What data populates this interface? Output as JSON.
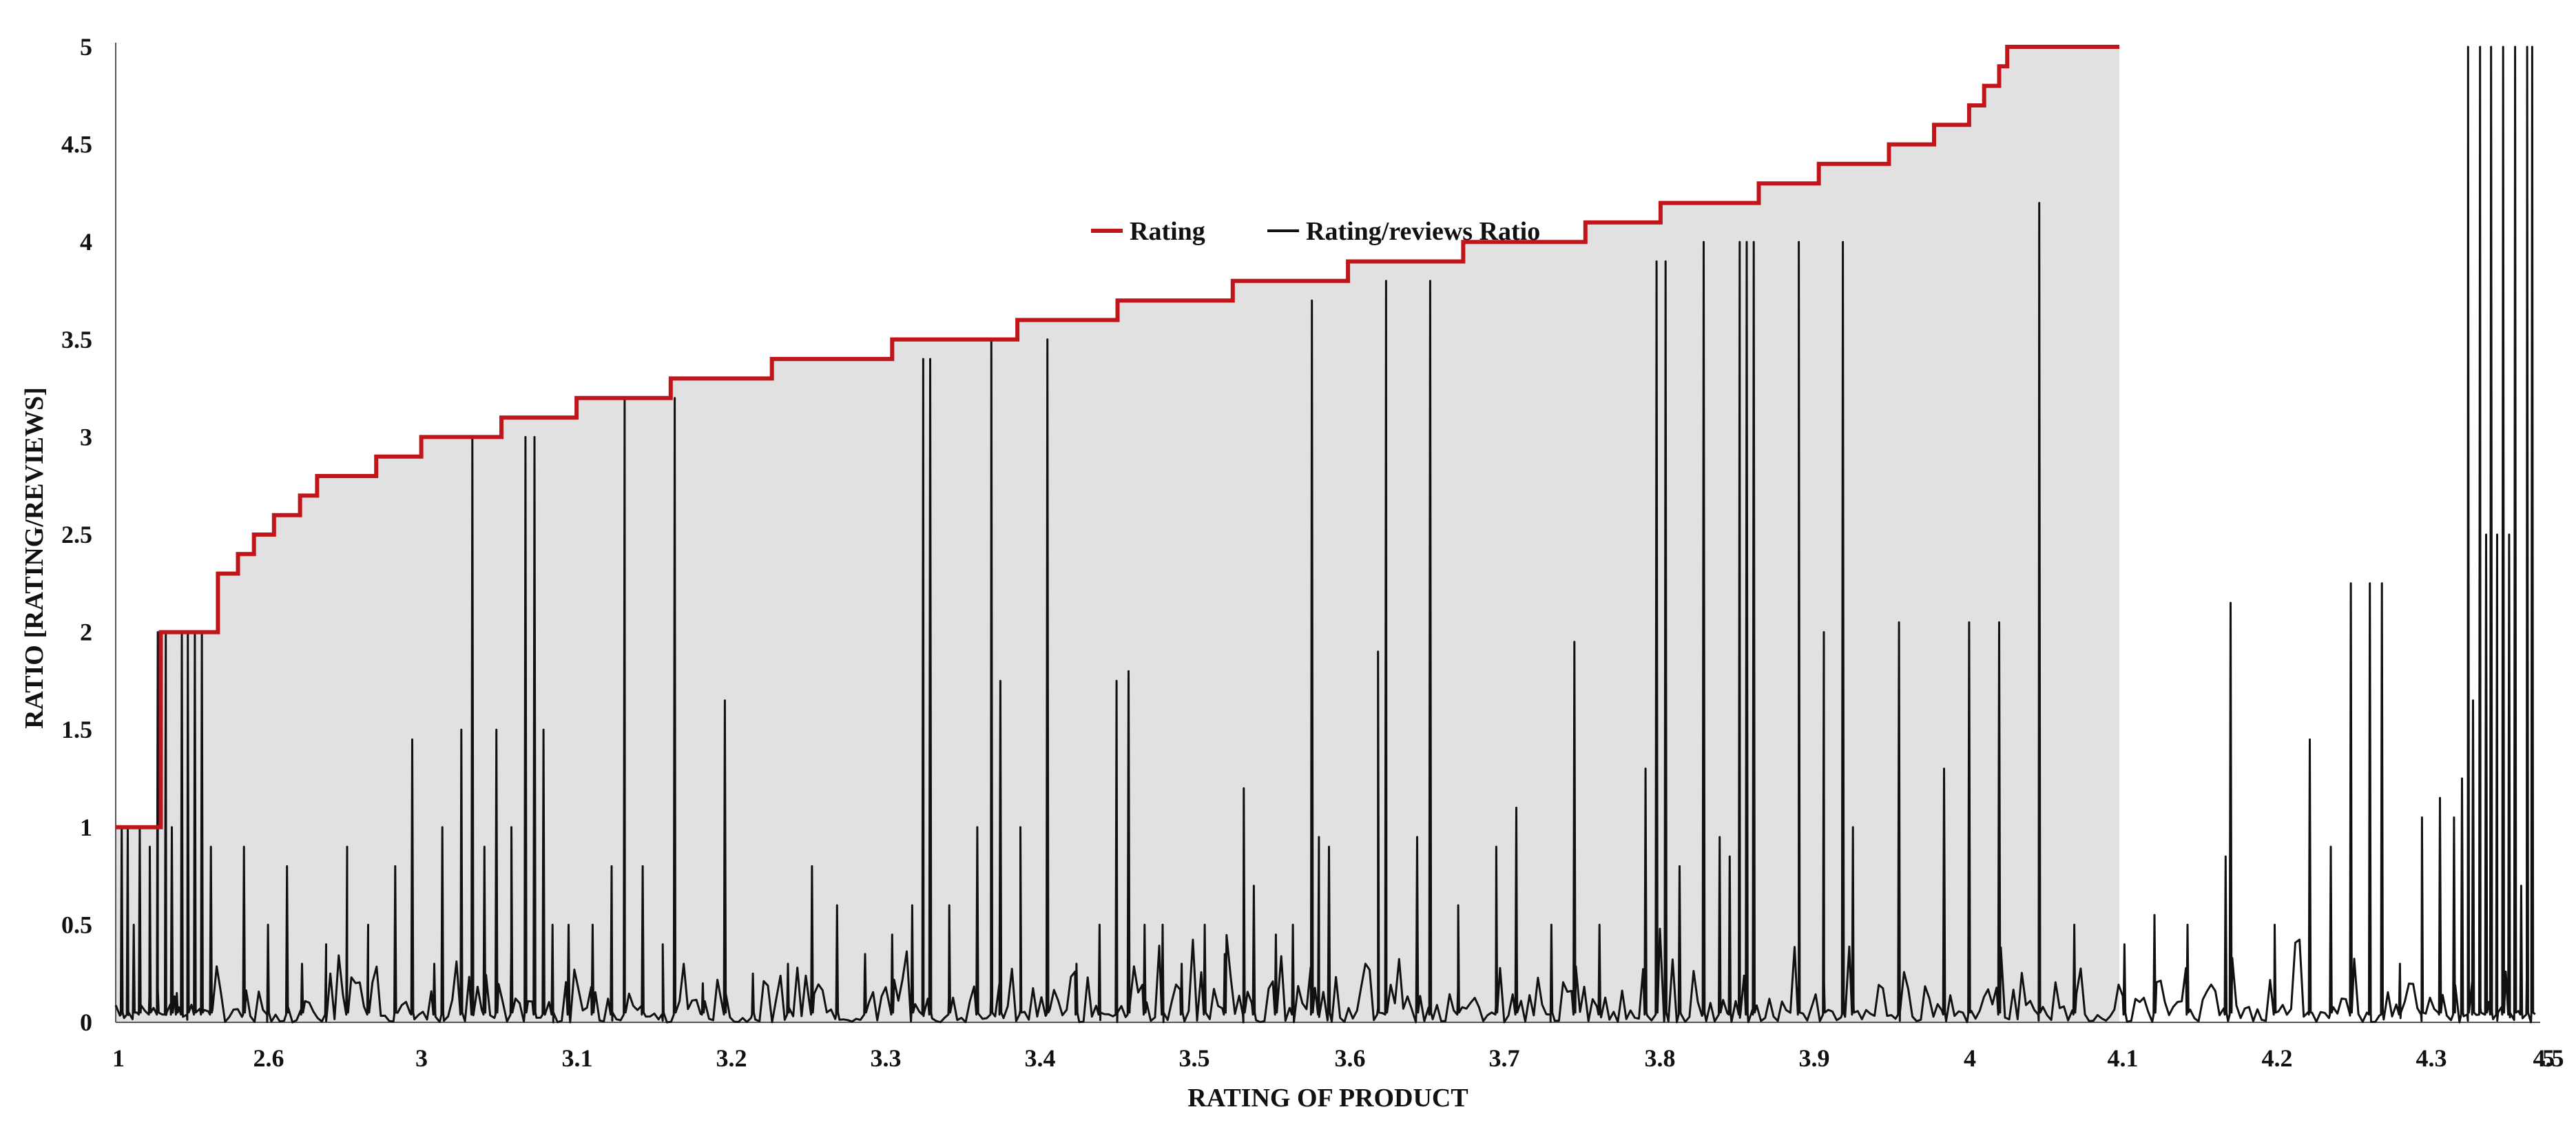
{
  "chart_data": {
    "type": "line",
    "xlabel": "RATING  OF PRODUCT",
    "ylabel": "RATIO  [RATING/REVIEWS]",
    "ylim": [
      0,
      5
    ],
    "y_ticks": [
      "0",
      "0.5",
      "1",
      "1.5",
      "2",
      "2.5",
      "3",
      "3.5",
      "4",
      "4.5",
      "5"
    ],
    "x_ticks": [
      "1",
      "2.6",
      "3",
      "3.1",
      "3.2",
      "3.3",
      "3.4",
      "3.5",
      "3.6",
      "3.7",
      "3.8",
      "3.9",
      "4",
      "4.1",
      "4.2",
      "4.3",
      "4.5",
      "5"
    ],
    "grid": false,
    "legend": {
      "position": "top-center",
      "entries": [
        "Rating",
        "Rating/reviews Ratio"
      ]
    },
    "colors": {
      "rating": "#c0151b",
      "ratio": "#111111",
      "fill": "#dcdcdc"
    },
    "series": [
      {
        "name": "Rating",
        "steps": [
          [
            0.0,
            1.0
          ],
          [
            0.045,
            2.0
          ],
          [
            0.102,
            2.3
          ],
          [
            0.122,
            2.4
          ],
          [
            0.138,
            2.5
          ],
          [
            0.158,
            2.6
          ],
          [
            0.184,
            2.7
          ],
          [
            0.201,
            2.8
          ],
          [
            0.26,
            2.9
          ],
          [
            0.305,
            3.0
          ],
          [
            0.385,
            3.1
          ],
          [
            0.46,
            3.2
          ],
          [
            0.554,
            3.3
          ],
          [
            0.655,
            3.4
          ],
          [
            0.775,
            3.5
          ],
          [
            0.9,
            3.6
          ],
          [
            1.0,
            3.7
          ],
          [
            1.115,
            3.8
          ],
          [
            1.23,
            3.9
          ],
          [
            1.345,
            4.0
          ],
          [
            1.467,
            4.1
          ],
          [
            1.542,
            4.2
          ],
          [
            1.64,
            4.3
          ],
          [
            1.7,
            4.4
          ],
          [
            1.77,
            4.5
          ],
          [
            1.815,
            4.6
          ],
          [
            1.85,
            4.7
          ],
          [
            1.865,
            4.8
          ],
          [
            1.88,
            4.9
          ],
          [
            1.888,
            5.0
          ],
          [
            2.0,
            5.0
          ]
        ]
      },
      {
        "name": "Rating/reviews Ratio",
        "peaks": [
          [
            0.006,
            1.0
          ],
          [
            0.012,
            1.0
          ],
          [
            0.018,
            0.5
          ],
          [
            0.024,
            1.0
          ],
          [
            0.034,
            0.9
          ],
          [
            0.042,
            2.0
          ],
          [
            0.05,
            2.0
          ],
          [
            0.056,
            1.0
          ],
          [
            0.061,
            0.15
          ],
          [
            0.066,
            2.0
          ],
          [
            0.072,
            2.0
          ],
          [
            0.079,
            2.0
          ],
          [
            0.086,
            2.0
          ],
          [
            0.095,
            0.9
          ],
          [
            0.128,
            0.9
          ],
          [
            0.152,
            0.5
          ],
          [
            0.171,
            0.8
          ],
          [
            0.186,
            0.3
          ],
          [
            0.21,
            0.4
          ],
          [
            0.231,
            0.9
          ],
          [
            0.252,
            0.5
          ],
          [
            0.279,
            0.8
          ],
          [
            0.296,
            1.45
          ],
          [
            0.318,
            0.3
          ],
          [
            0.326,
            1.0
          ],
          [
            0.345,
            1.5
          ],
          [
            0.356,
            3.0
          ],
          [
            0.368,
            0.9
          ],
          [
            0.38,
            1.5
          ],
          [
            0.395,
            1.0
          ],
          [
            0.409,
            3.0
          ],
          [
            0.418,
            3.0
          ],
          [
            0.427,
            1.5
          ],
          [
            0.436,
            0.5
          ],
          [
            0.452,
            0.5
          ],
          [
            0.476,
            0.5
          ],
          [
            0.495,
            0.8
          ],
          [
            0.508,
            3.2
          ],
          [
            0.526,
            0.8
          ],
          [
            0.546,
            0.4
          ],
          [
            0.558,
            3.2
          ],
          [
            0.586,
            0.2
          ],
          [
            0.608,
            1.65
          ],
          [
            0.636,
            0.25
          ],
          [
            0.671,
            0.3
          ],
          [
            0.695,
            0.8
          ],
          [
            0.72,
            0.6
          ],
          [
            0.748,
            0.35
          ],
          [
            0.775,
            0.45
          ],
          [
            0.795,
            0.6
          ],
          [
            0.806,
            3.4
          ],
          [
            0.813,
            3.4
          ],
          [
            0.832,
            0.6
          ],
          [
            0.86,
            1.0
          ],
          [
            0.874,
            3.5
          ],
          [
            0.883,
            1.75
          ],
          [
            0.903,
            1.0
          ],
          [
            0.93,
            3.5
          ],
          [
            0.959,
            0.3
          ],
          [
            0.982,
            0.5
          ],
          [
            0.999,
            1.75
          ],
          [
            1.011,
            1.8
          ],
          [
            1.027,
            0.5
          ],
          [
            1.045,
            0.5
          ],
          [
            1.064,
            0.3
          ],
          [
            1.087,
            0.5
          ],
          [
            1.107,
            0.35
          ],
          [
            1.126,
            1.2
          ],
          [
            1.136,
            0.7
          ],
          [
            1.158,
            0.45
          ],
          [
            1.175,
            0.5
          ],
          [
            1.194,
            3.7
          ],
          [
            1.201,
            0.95
          ],
          [
            1.211,
            0.9
          ],
          [
            1.26,
            1.9
          ],
          [
            1.268,
            3.8
          ],
          [
            1.299,
            0.95
          ],
          [
            1.312,
            3.8
          ],
          [
            1.34,
            0.6
          ],
          [
            1.378,
            0.9
          ],
          [
            1.398,
            1.1
          ],
          [
            1.433,
            0.5
          ],
          [
            1.456,
            1.95
          ],
          [
            1.481,
            0.5
          ],
          [
            1.527,
            1.3
          ],
          [
            1.538,
            3.9
          ],
          [
            1.547,
            3.9
          ],
          [
            1.561,
            0.8
          ],
          [
            1.585,
            4.0
          ],
          [
            1.601,
            0.95
          ],
          [
            1.611,
            0.85
          ],
          [
            1.621,
            4.0
          ],
          [
            1.628,
            4.0
          ],
          [
            1.635,
            4.0
          ],
          [
            1.68,
            4.0
          ],
          [
            1.705,
            2.0
          ],
          [
            1.724,
            4.0
          ],
          [
            1.734,
            1.0
          ],
          [
            1.78,
            2.05
          ],
          [
            1.825,
            1.3
          ],
          [
            1.85,
            2.05
          ],
          [
            1.88,
            2.05
          ],
          [
            1.92,
            4.2
          ],
          [
            1.955,
            0.5
          ],
          [
            2.005,
            0.4
          ],
          [
            2.035,
            0.55
          ],
          [
            2.068,
            0.5
          ],
          [
            2.106,
            0.85
          ],
          [
            2.111,
            2.15
          ],
          [
            2.155,
            0.5
          ],
          [
            2.19,
            1.45
          ],
          [
            2.211,
            0.9
          ],
          [
            2.231,
            2.25
          ],
          [
            2.25,
            2.25
          ],
          [
            2.262,
            2.25
          ],
          [
            2.28,
            0.3
          ],
          [
            2.302,
            1.05
          ],
          [
            2.32,
            1.15
          ],
          [
            2.334,
            1.05
          ],
          [
            2.342,
            1.25
          ],
          [
            2.348,
            5.0
          ],
          [
            2.353,
            1.65
          ],
          [
            2.36,
            5.0
          ],
          [
            2.366,
            2.5
          ],
          [
            2.371,
            5.0
          ],
          [
            2.377,
            2.5
          ],
          [
            2.383,
            5.0
          ],
          [
            2.389,
            2.5
          ],
          [
            2.395,
            5.0
          ],
          [
            2.401,
            0.7
          ],
          [
            2.407,
            5.0
          ],
          [
            2.412,
            5.0
          ],
          [
            2.418,
            5.0
          ]
        ]
      }
    ]
  }
}
